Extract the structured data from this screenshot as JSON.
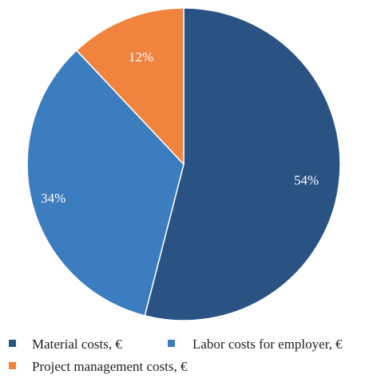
{
  "chart_data": {
    "type": "pie",
    "title": "",
    "slices": [
      {
        "name": "Material costs, €",
        "value": 54,
        "label": "54%",
        "color": "#2a5384"
      },
      {
        "name": "Labor costs for employer, €",
        "value": 34,
        "label": "34%",
        "color": "#3b7dbf"
      },
      {
        "name": "Project management costs, €",
        "value": 12,
        "label": "12%",
        "color": "#f0843f"
      }
    ],
    "legend_position": "bottom",
    "start_angle_deg": 0,
    "direction": "clockwise"
  }
}
